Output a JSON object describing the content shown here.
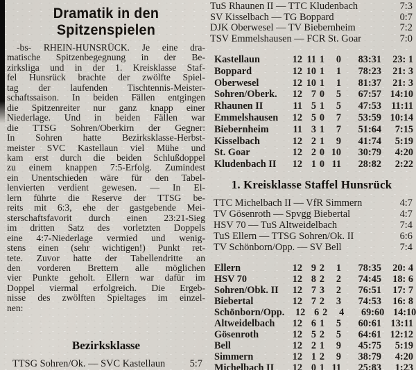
{
  "colors": {
    "paper": "#d6d3cd",
    "ink": "#1d1a17"
  },
  "left": {
    "headline_line1": "Dramatik in den",
    "headline_line2": "Spitzenspielen",
    "article_lines": [
      "-bs- RHEIN-HUNSRÜCK. Je eine dra-",
      "matische Spitzenbegegnung in der Be-",
      "zirksliga und in der 1. Kreisklasse Staf-",
      "fel Hunsrück brachte der zwölfte Spiel-",
      "tag der laufenden Tischtennis-Meister-",
      "schaftssaison. In beiden Fällen entgingen",
      "die Spitzenreiter nur ganz knapp einer",
      "Niederlage. Und in beiden Fällen war",
      "die TTSG Sohren/Oberkirn der Gegner:",
      "In Sohren hatte Bezirksklasse-Herbst-",
      "meister SVC Kastellaun viel Mühe und",
      "kam erst durch die beiden Schlußdoppel",
      "zu einem knappen 7:5-Erfolg. Zumindest",
      "ein Unentschieden wäre für den Tabel-",
      "lenvierten verdient gewesen. — In El-",
      "lern führte die Reserve der TTSG be-",
      "reits mit 6:3, ehe der gastgebende Mei-",
      "sterschaftsfavorit durch einen 23:21-Sieg",
      "im dritten Satz des vorletzten Doppels",
      "eine 4:7-Niederlage vermied und wenig-",
      "stens einen (sehr wichtigen!) Punkt ret-",
      "tete. Zuvor hatte der Tabellendritte an",
      "den vorderen Brettern alle möglichen",
      "vier Punkte geholt. Ellern war dafür im",
      "Doppel viermal erfolgreich. Die Ergeb-",
      "nisse des zwölften Spieltages im einzel-",
      "nen:"
    ],
    "section_heading": "Bezirksklasse",
    "result": {
      "matchup": "TTSG Sohren/Ok. — SVC Kastellaun",
      "score": "5:7"
    }
  },
  "right": {
    "bezirksklasse_results": [
      {
        "matchup": "TuS Rhaunen II — TTC Kludenbach",
        "score": "7:3"
      },
      {
        "matchup": "SV Kisselbach — TG Boppard",
        "score": "0:7"
      },
      {
        "matchup": "DJK Oberwesel — TV Biebernheim",
        "score": "7:2"
      },
      {
        "matchup": "TSV Emmelshausen — FCR St. Goar",
        "score": "7:0"
      }
    ],
    "bezirksklasse_table": {
      "rows": [
        {
          "team": "Kastellaun",
          "gp": "12",
          "w": "11",
          "d": "1",
          "l": "0",
          "sets": "83:31",
          "points": "23: 1"
        },
        {
          "team": "Boppard",
          "gp": "12",
          "w": "10",
          "d": "1",
          "l": "1",
          "sets": "78:23",
          "points": "21: 3"
        },
        {
          "team": "Oberwesel",
          "gp": "12",
          "w": "10",
          "d": "1",
          "l": "1",
          "sets": "81:37",
          "points": "21: 3"
        },
        {
          "team": "Sohren/Oberk.",
          "gp": "12",
          "w": "7",
          "d": "0",
          "l": "5",
          "sets": "67:57",
          "points": "14:10"
        },
        {
          "team": "Rhaunen II",
          "gp": "11",
          "w": "5",
          "d": "1",
          "l": "5",
          "sets": "47:53",
          "points": "11:11"
        },
        {
          "team": "Emmelshausen",
          "gp": "12",
          "w": "5",
          "d": "0",
          "l": "7",
          "sets": "53:59",
          "points": "10:14"
        },
        {
          "team": "Biebernheim",
          "gp": "11",
          "w": "3",
          "d": "1",
          "l": "7",
          "sets": "51:64",
          "points": "7:15"
        },
        {
          "team": "Kisselbach",
          "gp": "12",
          "w": "2",
          "d": "1",
          "l": "9",
          "sets": "41:74",
          "points": "5:19"
        },
        {
          "team": "St. Goar",
          "gp": "12",
          "w": "2",
          "d": "0",
          "l": "10",
          "sets": "30:79",
          "points": "4:20"
        },
        {
          "team": "Kludenbach II",
          "gp": "12",
          "w": "1",
          "d": "0",
          "l": "11",
          "sets": "28:82",
          "points": "2:22"
        }
      ]
    },
    "kreisklasse_heading": "1. Kreisklasse Staffel Hunsrück",
    "kreisklasse_results": [
      {
        "matchup": "TTC Michelbach II — VfR Simmern",
        "score": "4:7"
      },
      {
        "matchup": "TV Gösenroth — Spvgg Biebertal",
        "score": "4:7"
      },
      {
        "matchup": "HSV 70 — TuS Altweidelbach",
        "score": "7:4"
      },
      {
        "matchup": "TuS Ellern — TTSG Sohren/Ok. II",
        "score": "6:6"
      },
      {
        "matchup": "TV Schönborn/Opp. — SV Bell",
        "score": "7:4"
      }
    ],
    "kreisklasse_table": {
      "rows": [
        {
          "team": "Ellern",
          "gp": "12",
          "w": "9",
          "d": "2",
          "l": "1",
          "sets": "78:35",
          "points": "20: 4"
        },
        {
          "team": "HSV 70",
          "gp": "12",
          "w": "8",
          "d": "2",
          "l": "2",
          "sets": "74:45",
          "points": "18: 6"
        },
        {
          "team": "Sohren/Obk. II",
          "gp": "12",
          "w": "7",
          "d": "3",
          "l": "2",
          "sets": "76:51",
          "points": "17: 7"
        },
        {
          "team": "Biebertal",
          "gp": "12",
          "w": "7",
          "d": "2",
          "l": "3",
          "sets": "74:53",
          "points": "16: 8"
        },
        {
          "team": "Schönborn/Opp.",
          "gp": "12",
          "w": "6",
          "d": "2",
          "l": "4",
          "sets": "69:60",
          "points": "14:10"
        },
        {
          "team": "Altweidelbach",
          "gp": "12",
          "w": "6",
          "d": "1",
          "l": "5",
          "sets": "60:61",
          "points": "13:11"
        },
        {
          "team": "Gösenroth",
          "gp": "12",
          "w": "5",
          "d": "2",
          "l": "5",
          "sets": "64:61",
          "points": "12:12"
        },
        {
          "team": "Bell",
          "gp": "12",
          "w": "2",
          "d": "1",
          "l": "9",
          "sets": "45:75",
          "points": "5:19"
        },
        {
          "team": "Simmern",
          "gp": "12",
          "w": "1",
          "d": "2",
          "l": "9",
          "sets": "38:79",
          "points": "4:20"
        },
        {
          "team": "Michelbach II",
          "gp": "12",
          "w": "0",
          "d": "1",
          "l": "11",
          "sets": "25:83",
          "points": "1:23"
        }
      ]
    }
  }
}
